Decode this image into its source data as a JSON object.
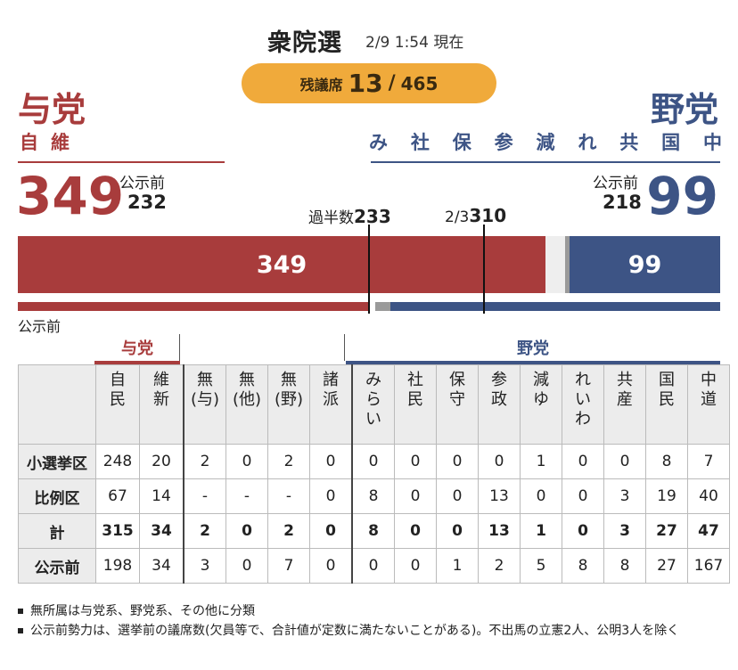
{
  "header": {
    "title": "衆院選",
    "as_of": "2/9 1:54 現在",
    "remaining_label": "残議席",
    "remaining_value": "13",
    "remaining_sep": "/",
    "total_seats": "465"
  },
  "ruling": {
    "name": "与党",
    "parties": "自維",
    "seats": "349",
    "prev_label": "公示前",
    "prev_value": "232"
  },
  "opposition": {
    "name": "野党",
    "parties": [
      "み",
      "社",
      "保",
      "参",
      "減",
      "れ",
      "共",
      "国",
      "中"
    ],
    "seats": "99",
    "prev_label": "公示前",
    "prev_value": "218"
  },
  "bar": {
    "majority_label": "過半数",
    "majority_value": "233",
    "twothirds_label": "2/3",
    "twothirds_value": "310",
    "ruling_label": "349",
    "opp_label": "99",
    "prev_label": "公示前"
  },
  "chart_data": {
    "type": "table",
    "total_seats": 465,
    "remaining_seats": 13,
    "current": {
      "ruling": 349,
      "opposition": 99
    },
    "previous": {
      "ruling": 232,
      "opposition": 218
    },
    "thresholds": {
      "majority": 233,
      "two_thirds": 310
    },
    "group_headers": {
      "ruling": "与党",
      "opposition": "野党"
    },
    "columns": [
      {
        "label": "自\n民",
        "group": "ruling"
      },
      {
        "label": "維\n新",
        "group": "ruling"
      },
      {
        "label": "無\n(与)",
        "group": "other"
      },
      {
        "label": "無\n(他)",
        "group": "other"
      },
      {
        "label": "無\n(野)",
        "group": "other"
      },
      {
        "label": "諸\n派",
        "group": "other"
      },
      {
        "label": "み\nら\nい",
        "group": "opposition"
      },
      {
        "label": "社\n民",
        "group": "opposition"
      },
      {
        "label": "保\n守",
        "group": "opposition"
      },
      {
        "label": "参\n政",
        "group": "opposition"
      },
      {
        "label": "減\nゆ",
        "group": "opposition"
      },
      {
        "label": "れ\nい\nわ",
        "group": "opposition"
      },
      {
        "label": "共\n産",
        "group": "opposition"
      },
      {
        "label": "国\n民",
        "group": "opposition"
      },
      {
        "label": "中\n道",
        "group": "opposition"
      }
    ],
    "rows": [
      {
        "label": "小選挙区",
        "values": [
          "248",
          "20",
          "2",
          "0",
          "2",
          "0",
          "0",
          "0",
          "0",
          "0",
          "1",
          "0",
          "0",
          "8",
          "7"
        ]
      },
      {
        "label": "比例区",
        "values": [
          "67",
          "14",
          "-",
          "-",
          "-",
          "0",
          "8",
          "0",
          "0",
          "13",
          "0",
          "0",
          "3",
          "19",
          "40"
        ]
      },
      {
        "label": "計",
        "values": [
          "315",
          "34",
          "2",
          "0",
          "2",
          "0",
          "8",
          "0",
          "0",
          "13",
          "1",
          "0",
          "3",
          "27",
          "47"
        ],
        "bold": true
      },
      {
        "label": "公示前",
        "values": [
          "198",
          "34",
          "3",
          "0",
          "7",
          "0",
          "0",
          "0",
          "1",
          "2",
          "5",
          "8",
          "8",
          "27",
          "167"
        ]
      }
    ]
  },
  "notes": [
    "無所属は与党系、野党系、その他に分類",
    "公示前勢力は、選挙前の議席数(欠員等で、合計値が定数に満たないことがある)。不出馬の立憲2人、公明3人を除く"
  ],
  "colors": {
    "ruling": "#a83c3c",
    "opposition": "#3d5485",
    "remaining": "#f0aa3b",
    "neutral": "#9a9a9a"
  }
}
